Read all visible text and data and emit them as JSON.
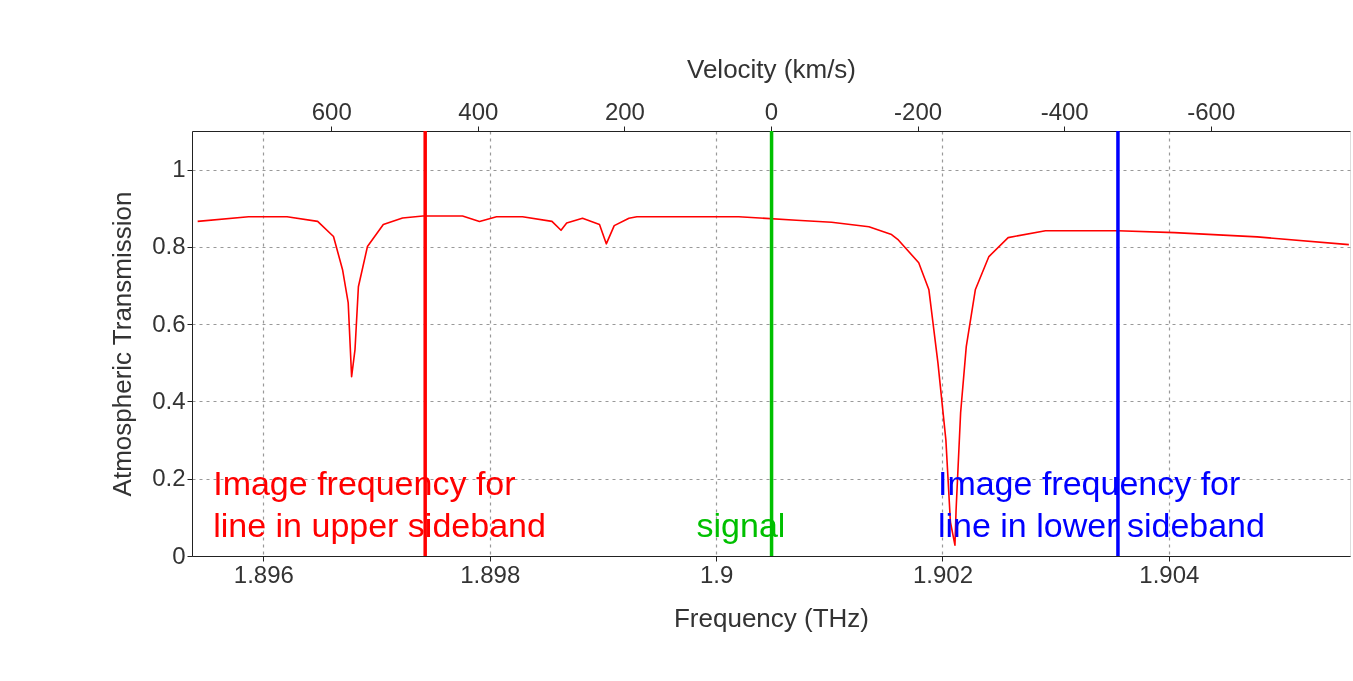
{
  "chart_data": {
    "type": "line",
    "xlabel": "Frequency (THz)",
    "ylabel": "Atmospheric Transmission",
    "x2label": "Velocity (km/s)",
    "xlim": [
      1.89537,
      1.9056
    ],
    "xticks": [
      1.896,
      1.898,
      1.9,
      1.902,
      1.904
    ],
    "ylim": [
      0,
      1.1
    ],
    "yticks": [
      0,
      0.2,
      0.4,
      0.6,
      0.8,
      1
    ],
    "x2lim": [
      790,
      -790
    ],
    "x2ticks": [
      600,
      400,
      200,
      0,
      -200,
      -400,
      -600
    ],
    "grid": true,
    "marker": "none",
    "line_style": "solid",
    "x": [
      1.89542,
      1.89587,
      1.89621,
      1.89648,
      1.89662,
      1.8967,
      1.89675,
      1.89678,
      1.89681,
      1.89684,
      1.89692,
      1.89706,
      1.89723,
      1.89741,
      1.89776,
      1.89791,
      1.89806,
      1.89829,
      1.89855,
      1.89863,
      1.89868,
      1.89882,
      1.89897,
      1.89903,
      1.8991,
      1.89923,
      1.8993,
      1.9002,
      1.90071,
      1.90102,
      1.90135,
      1.90155,
      1.90161,
      1.90179,
      1.90188,
      1.90196,
      1.90203,
      1.90207,
      1.90211,
      1.90212,
      1.90216,
      1.90221,
      1.90229,
      1.90241,
      1.90258,
      1.90291,
      1.90355,
      1.90405,
      1.90478,
      1.90559
    ],
    "series": [
      {
        "color": "#ff0000",
        "values": [
          0.866,
          0.878,
          0.878,
          0.866,
          0.827,
          0.741,
          0.655,
          0.464,
          0.534,
          0.697,
          0.801,
          0.858,
          0.875,
          0.88,
          0.88,
          0.866,
          0.878,
          0.878,
          0.866,
          0.843,
          0.862,
          0.874,
          0.858,
          0.808,
          0.855,
          0.874,
          0.878,
          0.878,
          0.869,
          0.864,
          0.852,
          0.832,
          0.818,
          0.759,
          0.689,
          0.499,
          0.3,
          0.088,
          0.028,
          0.119,
          0.37,
          0.542,
          0.689,
          0.775,
          0.824,
          0.842,
          0.842,
          0.837,
          0.826,
          0.806
        ]
      }
    ],
    "ref_lines": [
      {
        "axis": "x",
        "value": 1.89743,
        "label": "Image frequency for\nline in upper sideband",
        "color": "#ff0000"
      },
      {
        "axis": "x",
        "value": 1.90049,
        "label": "signal",
        "color": "#00c000"
      },
      {
        "axis": "x",
        "value": 1.90355,
        "label": "Image frequency for\nline in lower sideband",
        "color": "#0000ff"
      }
    ]
  }
}
